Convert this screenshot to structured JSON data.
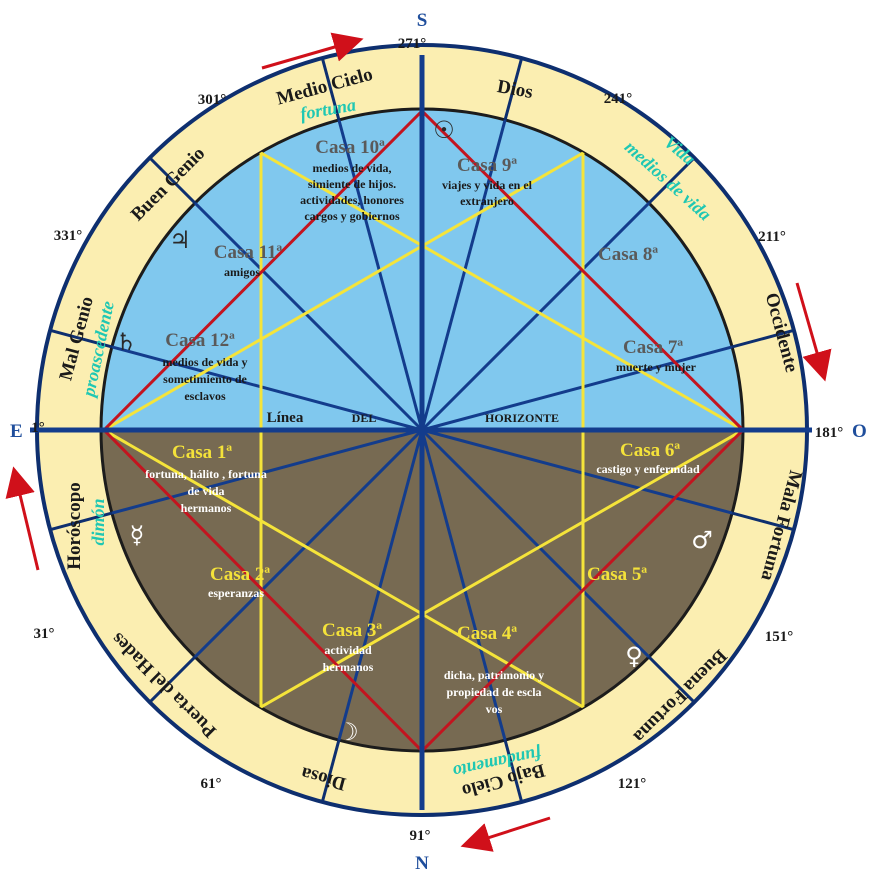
{
  "cardinals": {
    "south": "S",
    "north": "N",
    "east": "E",
    "west": "O"
  },
  "degrees": {
    "d271": "271°",
    "d241": "241°",
    "d211": "211°",
    "d181": "181°",
    "d151": "151°",
    "d121": "121°",
    "d91": "91°",
    "d61": "61°",
    "d31": "31°",
    "d1": "1°",
    "d331": "331°",
    "d301": "301°"
  },
  "outer_ring": {
    "medio_cielo": "Medio Cielo",
    "fortuna": "fortuna",
    "dios": "Dios",
    "vida": "Vida",
    "medios_de_vida": "medios de vida",
    "occidente": "Occidente",
    "mala_fortuna": "Mala Fortuna",
    "buena_fortuna": "Buena Fortuna",
    "bajo_cielo": "Bajo Cielo",
    "fundamento": "fundamento",
    "diosa": "Diosa",
    "puerta_del_hades": "Puerta del Hades",
    "horoscopo": "Horóscopo",
    "daimon": "dimón",
    "mal_genio": "Mal Genio",
    "proascedente": "proascedente",
    "buen_genio": "Buen Genio"
  },
  "houses": {
    "h10": {
      "title": "Casa 10ª",
      "l1": "medios de vida,",
      "l2": "simiente de hijos.",
      "l3": "actividades, honores",
      "l4": "cargos y gobiernos"
    },
    "h9": {
      "title": "Casa 9ª",
      "l1": "viajes y vida en el",
      "l2": "extranjero"
    },
    "h8": {
      "title": "Casa 8ª"
    },
    "h7": {
      "title": "Casa 7ª",
      "l1": "muerte y mujer"
    },
    "h11": {
      "title": "Casa 11ª",
      "l1": "amigos"
    },
    "h12": {
      "title": "Casa 12ª",
      "l1": "medios de vida y",
      "l2": "sometimiento de",
      "l3": "esclavos"
    },
    "h1": {
      "title": "Casa 1ª",
      "l1": "fortuna, hálito , fortuna",
      "l2": "de vida",
      "l3": "hermanos"
    },
    "h2": {
      "title": "Casa 2ª",
      "l1": "esperanzas"
    },
    "h3": {
      "title": "Casa 3ª",
      "l1": "actividad",
      "l2": "hermanos"
    },
    "h4": {
      "title": "Casa 4ª",
      "l1": "dicha, patrimonio y",
      "l2": "propiedad de escla",
      "l3": "vos"
    },
    "h5": {
      "title": "Casa 5ª"
    },
    "h6": {
      "title": "Casa 6ª",
      "l1": "castigo y enfermdad"
    }
  },
  "horizon": {
    "w1": "Línea",
    "w2": "del",
    "w3": "horizonte"
  },
  "planets": {
    "sun": "☉",
    "jupiter": "♃",
    "saturn": "♄",
    "mercury": "☿",
    "moon": "☽",
    "venus": "♀",
    "mars": "♂"
  },
  "colors": {
    "ring": "#fbeeb1",
    "sky": "#80c8ee",
    "earth": "#776a52",
    "blue_line": "#133c8c",
    "yellow_line": "#f5e43a",
    "red_line": "#c3141f",
    "teal_text": "#1fc7b3",
    "arrow": "#d0101a",
    "cardinal": "#1f4e9c"
  }
}
